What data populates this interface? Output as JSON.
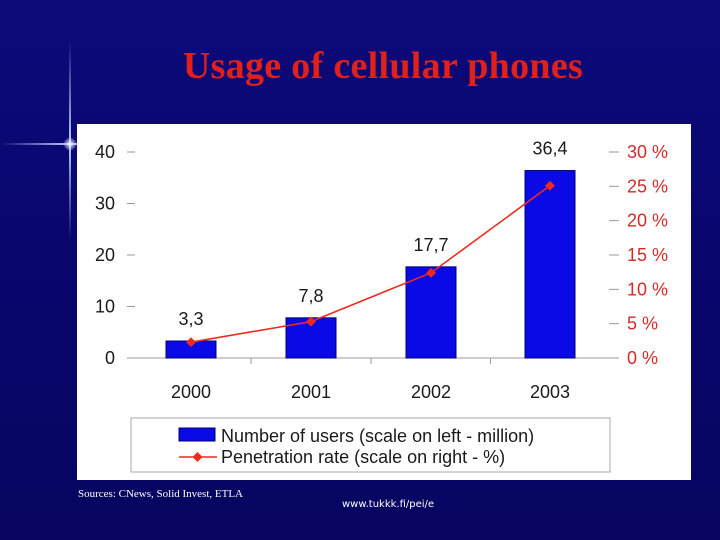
{
  "slide": {
    "title": "Usage of cellular phones",
    "source": "Sources: CNews, Solid Invest, ETLA",
    "url": "www.tukkk.fi/pei/e"
  },
  "colors": {
    "background": "#0a087a",
    "title": "#e0201b",
    "bars": "#0a0ae6",
    "line": "#ee2a1e",
    "right_axis_text": "#d42a2a",
    "panel": "#ffffff"
  },
  "chart_data": {
    "type": "bar",
    "categories": [
      "2000",
      "2001",
      "2002",
      "2003"
    ],
    "series": [
      {
        "name": "Number of users (scale on left - million)",
        "type": "bar",
        "axis": "left",
        "values": [
          3.3,
          7.8,
          17.7,
          36.4
        ],
        "labels": [
          "3,3",
          "7,8",
          "17,7",
          "36,4"
        ]
      },
      {
        "name": "Penetration rate (scale on right - %)",
        "type": "line",
        "axis": "right",
        "values": [
          2.3,
          5.3,
          12.4,
          25.1
        ]
      }
    ],
    "left_axis": {
      "ylim": [
        0,
        40
      ],
      "ticks": [
        "0",
        "10",
        "20",
        "30",
        "40"
      ]
    },
    "right_axis": {
      "ylim": [
        0,
        30
      ],
      "ticks": [
        "0 %",
        "5 %",
        "10 %",
        "15 %",
        "20 %",
        "25 %",
        "30 %"
      ]
    },
    "grid": false,
    "legend": "bottom"
  }
}
